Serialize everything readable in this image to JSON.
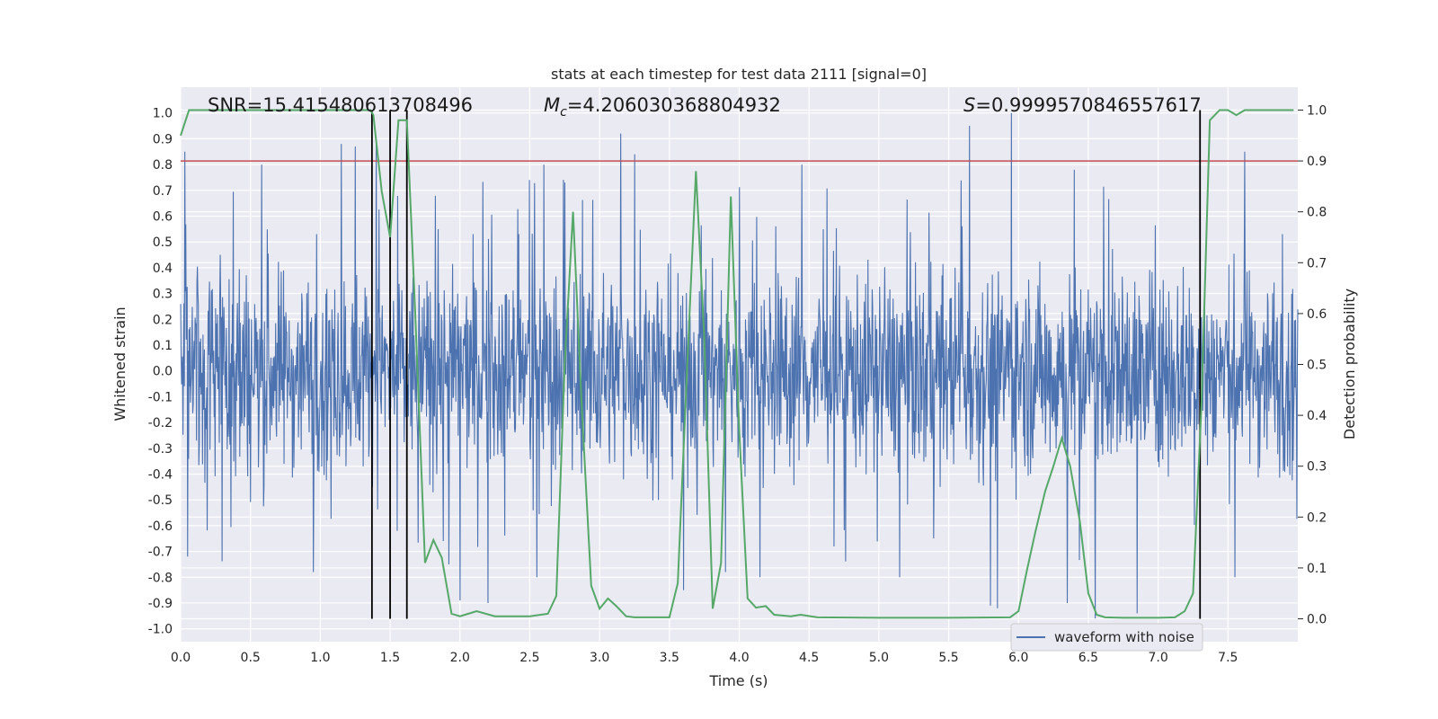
{
  "chart_data": {
    "type": "line",
    "title": "stats at each timestep for test data 2111 [signal=0]",
    "xlabel": "Time (s)",
    "ylabel_left": "Whitened strain",
    "ylabel_right": "Detection probability",
    "xlim": [
      0.0,
      8.0
    ],
    "ylim_left": [
      -1.05,
      1.1
    ],
    "ylim_right": [
      -0.045,
      1.045
    ],
    "x_ticks": [
      "0.0",
      "0.5",
      "1.0",
      "1.5",
      "2.0",
      "2.5",
      "3.0",
      "3.5",
      "4.0",
      "4.5",
      "5.0",
      "5.5",
      "6.0",
      "6.5",
      "7.0",
      "7.5"
    ],
    "y_ticks_left": [
      "1.0",
      "0.9",
      "0.8",
      "0.7",
      "0.6",
      "0.5",
      "0.4",
      "0.3",
      "0.2",
      "0.1",
      "0.0",
      "-0.1",
      "-0.2",
      "-0.3",
      "-0.4",
      "-0.5",
      "-0.6",
      "-0.7",
      "-0.8",
      "-0.9",
      "-1.0"
    ],
    "y_ticks_right": [
      "1.0",
      "0.9",
      "0.8",
      "0.7",
      "0.6",
      "0.5",
      "0.4",
      "0.3",
      "0.2",
      "0.1",
      "0.0"
    ],
    "grid": true,
    "legend": {
      "position": "bottom-right",
      "entries": [
        "waveform with noise"
      ]
    },
    "annotations": {
      "snr": "SNR=15.415480613708496",
      "mc_symbol": "M",
      "mc_sub": "c",
      "mc_value": "=4.206030368804932",
      "s_symbol": "S",
      "s_value": "=0.9999570846557617"
    },
    "threshold": {
      "axis": "right",
      "value": 0.9,
      "color": "#c44e52"
    },
    "vertical_markers": [
      1.37,
      1.5,
      1.62,
      7.3
    ],
    "series": [
      {
        "name": "waveform with noise",
        "axis": "left",
        "color": "#4c72b0",
        "style": "dense-noise",
        "envelope_typical": 0.45,
        "spikes": [
          [
            0.03,
            0.85
          ],
          [
            0.05,
            -0.72
          ],
          [
            0.58,
            0.8
          ],
          [
            0.95,
            -0.78
          ],
          [
            1.15,
            0.88
          ],
          [
            1.25,
            0.87
          ],
          [
            1.4,
            0.9
          ],
          [
            1.55,
            -0.62
          ],
          [
            1.92,
            -0.75
          ],
          [
            2.0,
            -0.89
          ],
          [
            2.2,
            -0.9
          ],
          [
            2.55,
            -0.8
          ],
          [
            2.6,
            0.8
          ],
          [
            2.75,
            0.73
          ],
          [
            3.15,
            0.92
          ],
          [
            3.25,
            0.84
          ],
          [
            3.6,
            -0.85
          ],
          [
            3.9,
            -0.78
          ],
          [
            4.15,
            -0.8
          ],
          [
            4.45,
            0.8
          ],
          [
            5.15,
            -0.8
          ],
          [
            5.65,
            0.95
          ],
          [
            5.8,
            -0.91
          ],
          [
            5.85,
            -0.92
          ],
          [
            5.95,
            1.0
          ],
          [
            6.35,
            -0.9
          ],
          [
            6.55,
            -0.96
          ],
          [
            6.4,
            0.78
          ],
          [
            6.85,
            -0.94
          ],
          [
            7.55,
            -0.8
          ],
          [
            7.62,
            0.85
          ]
        ]
      },
      {
        "name": "",
        "axis": "right",
        "color": "#55a868",
        "x": [
          0.0,
          0.06,
          0.2,
          0.5,
          0.9,
          1.2,
          1.36,
          1.38,
          1.44,
          1.5,
          1.56,
          1.62,
          1.68,
          1.75,
          1.81,
          1.87,
          1.94,
          2.0,
          2.06,
          2.12,
          2.25,
          2.5,
          2.63,
          2.69,
          2.75,
          2.81,
          2.87,
          2.94,
          3.0,
          3.06,
          3.12,
          3.19,
          3.25,
          3.5,
          3.56,
          3.62,
          3.69,
          3.75,
          3.81,
          3.87,
          3.94,
          4.0,
          4.06,
          4.12,
          4.19,
          4.25,
          4.37,
          4.44,
          4.56,
          5.0,
          5.5,
          5.94,
          6.0,
          6.06,
          6.12,
          6.19,
          6.25,
          6.31,
          6.37,
          6.44,
          6.5,
          6.56,
          6.62,
          6.75,
          7.0,
          7.12,
          7.19,
          7.25,
          7.31,
          7.37,
          7.44,
          7.5,
          7.56,
          7.62,
          7.75,
          7.97
        ],
        "y": [
          0.95,
          1.0,
          1.0,
          1.0,
          1.0,
          1.0,
          1.0,
          0.99,
          0.84,
          0.75,
          0.98,
          0.98,
          0.6,
          0.11,
          0.155,
          0.12,
          0.01,
          0.005,
          0.01,
          0.015,
          0.005,
          0.005,
          0.01,
          0.045,
          0.5,
          0.8,
          0.43,
          0.065,
          0.02,
          0.04,
          0.025,
          0.005,
          0.003,
          0.003,
          0.07,
          0.45,
          0.88,
          0.55,
          0.02,
          0.11,
          0.83,
          0.37,
          0.04,
          0.022,
          0.025,
          0.008,
          0.005,
          0.008,
          0.003,
          0.002,
          0.002,
          0.003,
          0.015,
          0.095,
          0.17,
          0.25,
          0.3,
          0.355,
          0.3,
          0.19,
          0.05,
          0.008,
          0.003,
          0.002,
          0.002,
          0.003,
          0.015,
          0.05,
          0.42,
          0.98,
          1.0,
          1.0,
          0.99,
          1.0,
          1.0,
          1.0
        ]
      }
    ]
  }
}
